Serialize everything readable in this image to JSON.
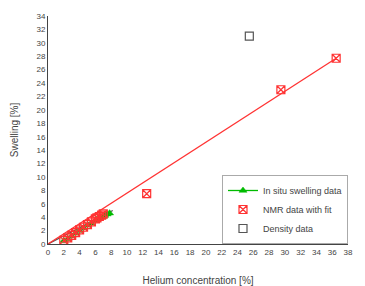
{
  "chart_data": {
    "type": "line",
    "xlabel": "Helium concentration [%]",
    "ylabel": "Swelling [%]",
    "xlim": [
      0,
      38
    ],
    "ylim": [
      0,
      34
    ],
    "xticks": [
      0,
      2,
      4,
      6,
      8,
      10,
      12,
      14,
      16,
      18,
      20,
      22,
      24,
      26,
      28,
      30,
      32,
      34,
      36,
      38
    ],
    "yticks": [
      0,
      2,
      4,
      6,
      8,
      10,
      12,
      14,
      16,
      18,
      20,
      22,
      24,
      26,
      28,
      30,
      32,
      34
    ],
    "grid": false,
    "legend": "lower right",
    "series": [
      {
        "type": "line",
        "color": "#555555",
        "line_style": "solid",
        "x": [
          0,
          8.2
        ],
        "values": [
          0,
          5.0
        ]
      },
      {
        "name": "In situ swelling data",
        "type": "line",
        "color": "#00bb00",
        "line_style": "solid",
        "marker": "triangle-up",
        "x": [
          2.0,
          2.5,
          3.0,
          3.5,
          4.0,
          4.5,
          5.0,
          5.5,
          6.0,
          6.2,
          6.5,
          6.8,
          7.0,
          7.2,
          7.5,
          7.8
        ],
        "values": [
          0.5,
          0.8,
          1.2,
          1.6,
          2.0,
          2.4,
          2.8,
          3.1,
          3.5,
          3.65,
          3.85,
          4.0,
          4.1,
          4.25,
          4.45,
          4.6
        ]
      },
      {
        "type": "line",
        "color": "#ff3333",
        "line_style": "solid",
        "x": [
          0,
          36.5
        ],
        "values": [
          0,
          27.7
        ]
      },
      {
        "name": "NMR data with fit",
        "type": "scatter",
        "color": "#ff3333",
        "marker": "square-x-open",
        "x": [
          2.0,
          2.5,
          3.0,
          3.5,
          4.0,
          4.5,
          5.0,
          5.5,
          6.0,
          6.2,
          6.5,
          6.8,
          7.0,
          12.5,
          29.5,
          36.5
        ],
        "values": [
          0.55,
          0.9,
          1.3,
          1.7,
          2.1,
          2.5,
          2.9,
          3.3,
          3.75,
          3.9,
          4.1,
          4.3,
          4.5,
          7.5,
          23.0,
          27.7
        ]
      },
      {
        "name": "Density data",
        "type": "scatter",
        "color": "#555555",
        "marker": "square-open",
        "x": [
          25.5
        ],
        "values": [
          31.0
        ]
      }
    ]
  }
}
